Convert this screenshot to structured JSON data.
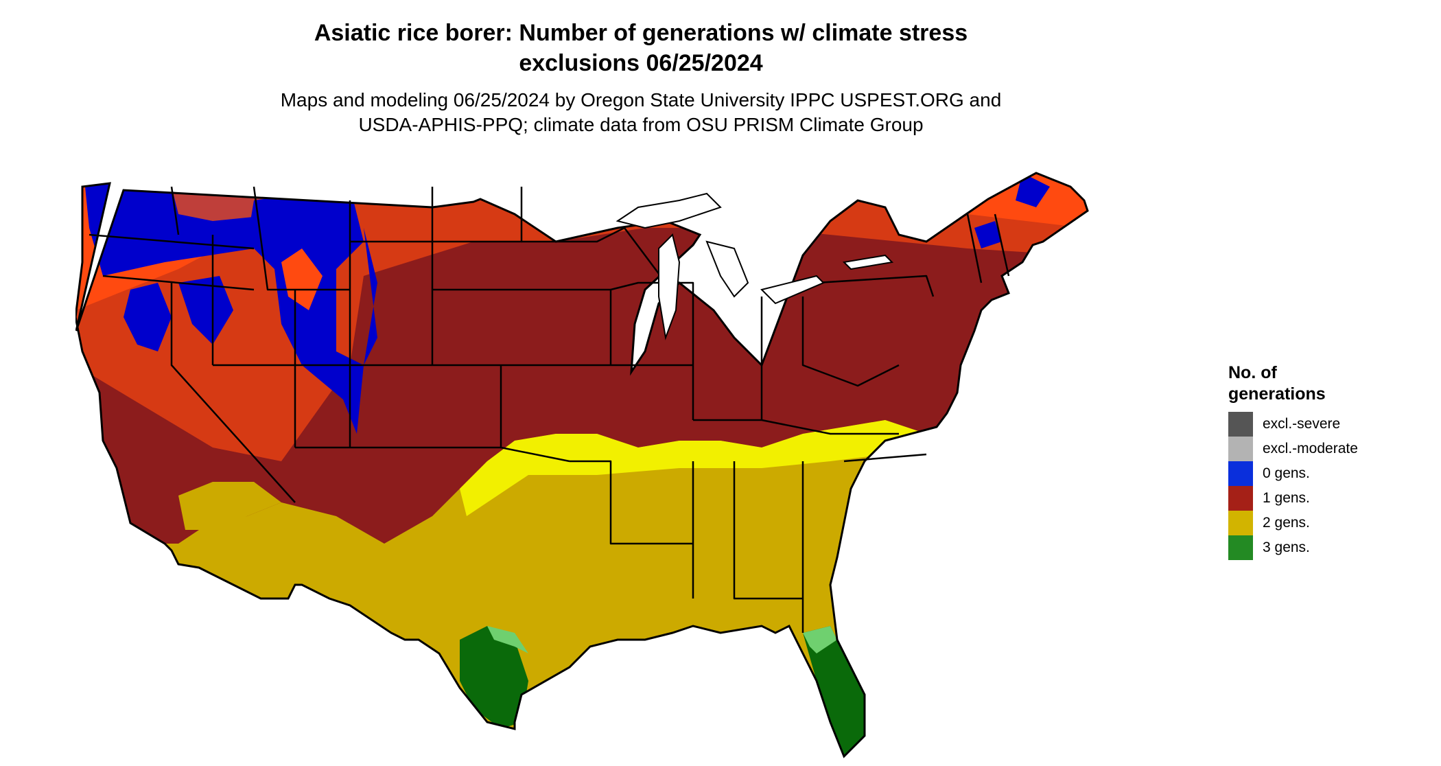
{
  "title": {
    "line1": "Asiatic rice borer: Number of generations w/ climate stress",
    "line2": "exclusions 06/25/2024"
  },
  "subtitle": {
    "line1": "Maps and modeling 06/25/2024 by Oregon State University IPPC USPEST.ORG and",
    "line2": "USDA-APHIS-PPQ; climate data from OSU PRISM Climate Group"
  },
  "legend": {
    "title_line1": "No. of",
    "title_line2": "generations",
    "items": [
      {
        "label": "excl.-severe",
        "color": "#555555"
      },
      {
        "label": "excl.-moderate",
        "color": "#b3b3b3"
      },
      {
        "label": "0 gens.",
        "color": "#0a2fdc"
      },
      {
        "label": "1 gens.",
        "color": "#a52017"
      },
      {
        "label": "2 gens.",
        "color": "#d2b400"
      },
      {
        "label": "3 gens.",
        "color": "#238a23"
      }
    ]
  },
  "map_colors": {
    "zero": "#0000cc",
    "one_light": "#ff4a10",
    "one_mid": "#d63a14",
    "one_dark": "#8c1c1c",
    "two_light": "#f2f000",
    "two_dark": "#ccaa00",
    "three_light": "#6fd06f",
    "three_dark": "#0a6a0a",
    "borders": "#000000"
  }
}
